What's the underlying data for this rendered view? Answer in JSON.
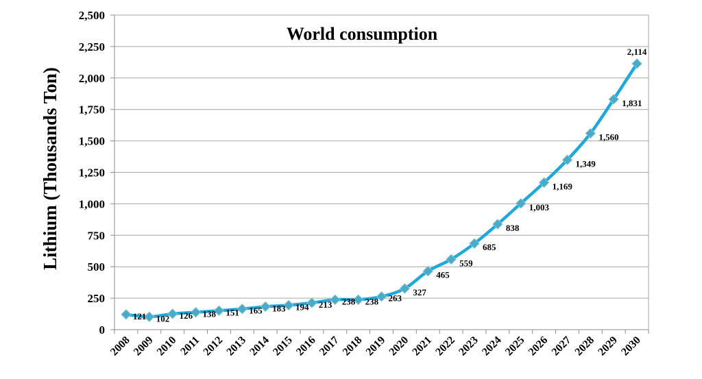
{
  "chart_data": {
    "type": "line",
    "title": "World consumption",
    "ylabel": "Lithium (Thousands Ton)",
    "xlabel": "",
    "categories": [
      "2008",
      "2009",
      "2010",
      "2011",
      "2012",
      "2013",
      "2014",
      "2015",
      "2016",
      "2017",
      "2018",
      "2019",
      "2020",
      "2021",
      "2022",
      "2023",
      "2024",
      "2025",
      "2026",
      "2027",
      "2028",
      "2029",
      "2030"
    ],
    "series": [
      {
        "values": [
          121,
          102,
          126,
          138,
          151,
          165,
          183,
          194,
          213,
          238,
          238,
          263,
          327,
          465,
          559,
          685,
          838,
          1003,
          1169,
          1349,
          1560,
          1831,
          2114
        ],
        "labels": [
          "121",
          "102",
          "126",
          "138",
          "151",
          "165",
          "183",
          "194",
          "213",
          "238",
          "238",
          "263",
          "327",
          "465",
          "559",
          "685",
          "838",
          "1,003",
          "1,169",
          "1,349",
          "1,560",
          "1,831",
          "2,114"
        ],
        "color": "#1fa8dc",
        "marker_color": "#4baac6"
      }
    ],
    "ylim": [
      0,
      2500
    ],
    "yticks": [
      0,
      250,
      500,
      750,
      1000,
      1250,
      1500,
      1750,
      2000,
      2250,
      2500
    ],
    "ytick_labels": [
      "0",
      "250",
      "500",
      "750",
      "1,000",
      "1,250",
      "1,500",
      "1,750",
      "2,000",
      "2,250",
      "2,500"
    ],
    "grid": true,
    "legend": "none"
  }
}
